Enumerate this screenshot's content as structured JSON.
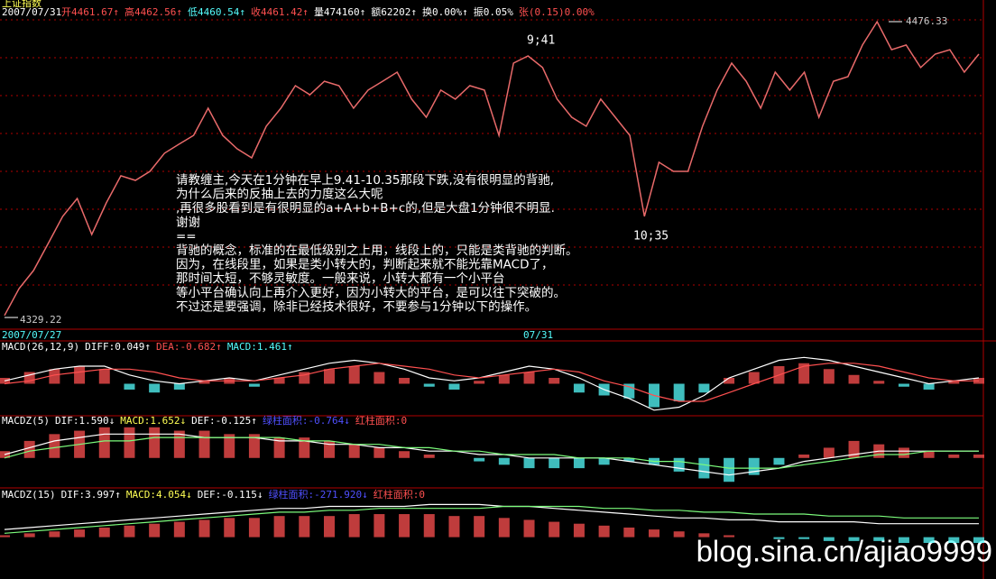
{
  "header": {
    "title": "上证指数",
    "date": "2007/07/31",
    "items": [
      {
        "text": "开4461.67↑",
        "color": "#ff5050"
      },
      {
        "text": "高4462.56↑",
        "color": "#ff5050"
      },
      {
        "text": "低4460.54↑",
        "color": "#54fcfc"
      },
      {
        "text": "收4461.42↑",
        "color": "#ff5050"
      },
      {
        "text": "量474160↑",
        "color": "#ffffff"
      },
      {
        "text": "额62202↑",
        "color": "#ffffff"
      },
      {
        "text": "换0.00%↑",
        "color": "#ffffff"
      },
      {
        "text": "振0.05%",
        "color": "#ffffff"
      },
      {
        "text": "张(0.15)0.00%",
        "color": "#ff5050"
      }
    ]
  },
  "price": {
    "color": "#e86a6a",
    "ylim": [
      4323.4,
      4487.1
    ],
    "high": 4476.33,
    "low": 4329.22,
    "mark_1": "9;41",
    "mark_2": "10;35",
    "values": [
      4330.2,
      4343.6,
      4352.6,
      4366.0,
      4379.5,
      4388.4,
      4370.5,
      4386.2,
      4399.7,
      4397.4,
      4401.9,
      4410.9,
      4415.4,
      4419.8,
      4433.3,
      4419.8,
      4413.1,
      4408.6,
      4424.3,
      4433.3,
      4444.5,
      4440.0,
      4446.7,
      4444.5,
      4433.3,
      4442.3,
      4446.7,
      4451.2,
      4437.8,
      4428.8,
      4442.3,
      4437.8,
      4444.5,
      4442.3,
      4419.8,
      4455.7,
      4459.3,
      4453.5,
      4437.8,
      4428.8,
      4424.3,
      4437.8,
      4428.8,
      4419.8,
      4379.5,
      4406.4,
      4401.9,
      4401.9,
      4424.3,
      4442.3,
      4455.7,
      4446.7,
      4433.3,
      4451.2,
      4442.3,
      4451.2,
      4428.8,
      4446.7,
      4449.0,
      4464.7,
      4476.3,
      4462.4,
      4464.7,
      4453.5,
      4460.2,
      4462.4,
      4451.2,
      4460.2
    ]
  },
  "axis": {
    "start": "2007/07/27",
    "mid": "07/31"
  },
  "note": [
    "请教缠主,今天在1分钟在早上9.41-10.35那段下跌,没有很明显的背驰,",
    "为什么后来的反抽上去的力度这么大呢",
    ",再很多股看到是有很明显的a+A+b+B+c的,但是大盘1分钟很不明显.",
    "谢谢",
    "==",
    "背驰的概念，标准的在最低级别之上用，线段上的，只能是类背驰的判断。",
    "因为，在线段里，如果是类小转大的，判断起来就不能光靠MACD了，",
    "那时间太短，不够灵敏度。一般来说，小转大都有一个小平台",
    "等小平台确认向上再介入更好，因为小转大的平台，是可以往下突破的。",
    "不过还是要强调，除非已经技术很好，不要参与1分钟以下的操作。"
  ],
  "panels": [
    {
      "labels": [
        {
          "text": "MACD(26,12,9)",
          "color": "#ffffff"
        },
        {
          "text": "DIFF:0.049↑",
          "color": "#ffffff"
        },
        {
          "text": "DEA:-0.682↑",
          "color": "#ff5050"
        },
        {
          "text": "MACD:1.461↑",
          "color": "#54fcfc"
        }
      ],
      "ylim": [
        -10,
        10
      ],
      "up_color": "#ff5050",
      "down_color": "#54fcfc",
      "hist": [
        2,
        4,
        5,
        6,
        5,
        -2,
        -3,
        -2,
        1,
        2,
        -1,
        2,
        4,
        5,
        6,
        4,
        2,
        -1,
        -2,
        1,
        3,
        4,
        2,
        -3,
        -4,
        -5,
        -8,
        -6,
        -3,
        2,
        4,
        6,
        7,
        5,
        3,
        1,
        -1,
        -2,
        1,
        2
      ],
      "lines": [
        {
          "color": "#ffffff",
          "values": [
            1,
            3,
            5,
            6,
            6,
            3,
            1,
            0,
            1,
            2,
            1,
            3,
            5,
            7,
            8,
            7,
            5,
            2,
            1,
            2,
            4,
            6,
            5,
            2,
            -2,
            -5,
            -9,
            -8,
            -4,
            2,
            5,
            8,
            9,
            8,
            6,
            4,
            2,
            0,
            1,
            2
          ]
        },
        {
          "color": "#ff5050",
          "values": [
            0,
            1,
            3,
            4,
            5,
            5,
            4,
            2,
            1,
            1,
            1,
            2,
            3,
            5,
            6,
            7,
            6,
            5,
            3,
            2,
            3,
            4,
            5,
            4,
            1,
            -1,
            -4,
            -6,
            -6,
            -3,
            0,
            3,
            6,
            7,
            7,
            6,
            4,
            2,
            1,
            1
          ]
        }
      ]
    },
    {
      "labels": [
        {
          "text": "MACDZ(5)",
          "color": "#ffffff"
        },
        {
          "text": "DIF:1.590↓",
          "color": "#ffffff"
        },
        {
          "text": "MACD:1.652↓",
          "color": "#ffff54"
        },
        {
          "text": "DEF:-0.125↑",
          "color": "#ffffff"
        },
        {
          "text": "绿柱面积:-0.764↓",
          "color": "#5050ff"
        },
        {
          "text": "红柱面积:0",
          "color": "#ff5050"
        }
      ],
      "ylim": [
        -8,
        10
      ],
      "up_color": "#ff5050",
      "down_color": "#54fcfc",
      "hist": [
        2,
        5,
        7,
        8,
        9,
        9,
        9,
        8,
        8,
        7,
        7,
        6,
        6,
        5,
        4,
        3,
        2,
        1,
        0,
        -1,
        -2,
        -3,
        -3,
        -3,
        -2,
        -1,
        -2,
        -4,
        -6,
        -7,
        -5,
        -2,
        1,
        3,
        5,
        4,
        3,
        2,
        1,
        1
      ],
      "lines": [
        {
          "color": "#ffffff",
          "values": [
            1,
            3,
            5,
            6,
            7,
            7,
            7,
            7,
            6,
            6,
            6,
            5,
            5,
            4,
            4,
            3,
            3,
            2,
            2,
            1,
            1,
            0,
            0,
            0,
            0,
            -1,
            -2,
            -3,
            -4,
            -5,
            -4,
            -3,
            -1,
            0,
            1,
            2,
            2,
            2,
            2,
            2
          ]
        },
        {
          "color": "#7cfc7c",
          "values": [
            0,
            2,
            3,
            4,
            5,
            5,
            6,
            6,
            6,
            6,
            6,
            6,
            5,
            5,
            4,
            4,
            3,
            3,
            2,
            2,
            1,
            1,
            1,
            0,
            0,
            0,
            -1,
            -1,
            -2,
            -3,
            -3,
            -3,
            -2,
            -1,
            0,
            1,
            1,
            2,
            2,
            2
          ]
        }
      ]
    },
    {
      "labels": [
        {
          "text": "MACDZ(15)",
          "color": "#ffffff"
        },
        {
          "text": "DIF:3.997↑",
          "color": "#ffffff"
        },
        {
          "text": "MACD:4.054↓",
          "color": "#ffff54"
        },
        {
          "text": "DEF:-0.115↓",
          "color": "#ffffff"
        },
        {
          "text": "绿柱面积:-271.920↓",
          "color": "#5050ff"
        },
        {
          "text": "红柱面积:0",
          "color": "#ff5050"
        }
      ],
      "ylim": [
        -3,
        20
      ],
      "up_color": "#ff5050",
      "down_color": "#54fcfc",
      "hist": [
        1,
        2,
        3,
        4,
        5,
        6,
        7,
        8,
        9,
        10,
        10,
        11,
        11,
        11,
        12,
        12,
        12,
        12,
        11,
        11,
        10,
        9,
        8,
        7,
        6,
        5,
        4,
        3,
        2,
        1,
        0,
        -1,
        -1,
        -2,
        -2,
        -2,
        -3,
        -3,
        -3,
        -3
      ],
      "lines": [
        {
          "color": "#ffffff",
          "values": [
            4,
            5,
            6,
            7,
            8,
            9,
            10,
            11,
            12,
            13,
            14,
            15,
            15,
            16,
            16,
            16,
            16,
            17,
            17,
            17,
            16,
            16,
            15,
            14,
            13,
            12,
            11,
            10,
            10,
            9,
            9,
            8,
            8,
            8,
            8,
            7,
            7,
            7,
            7,
            7
          ]
        },
        {
          "color": "#7cfc7c",
          "values": [
            2,
            3,
            4,
            5,
            6,
            7,
            8,
            9,
            10,
            11,
            12,
            13,
            13,
            14,
            14,
            15,
            15,
            15,
            15,
            15,
            16,
            16,
            16,
            16,
            15,
            15,
            14,
            14,
            13,
            13,
            12,
            12,
            12,
            11,
            11,
            11,
            10,
            10,
            10,
            10
          ]
        }
      ]
    }
  ],
  "watermark": "blog.sina.cn/ajiao9999"
}
